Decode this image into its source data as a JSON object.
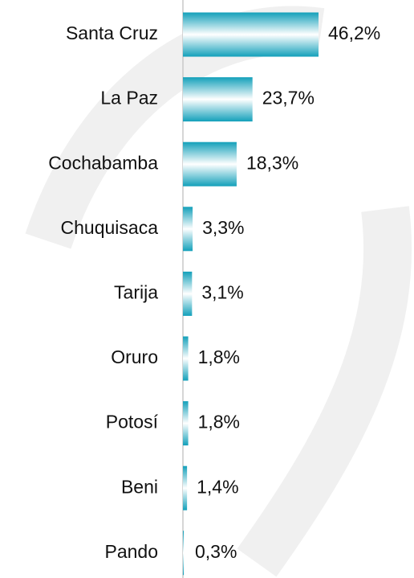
{
  "chart_data": {
    "type": "bar",
    "orientation": "horizontal",
    "categories": [
      "Santa Cruz",
      "La Paz",
      "Cochabamba",
      "Chuquisaca",
      "Tarija",
      "Oruro",
      "Potosí",
      "Beni",
      "Pando"
    ],
    "values": [
      46.2,
      23.7,
      18.3,
      3.3,
      3.1,
      1.8,
      1.8,
      1.4,
      0.3
    ],
    "value_labels": [
      "46,2%",
      "23,7%",
      "18,3%",
      "3,3%",
      "3,1%",
      "1,8%",
      "1,8%",
      "1,4%",
      "0,3%"
    ],
    "color": "#13a0ba"
  }
}
